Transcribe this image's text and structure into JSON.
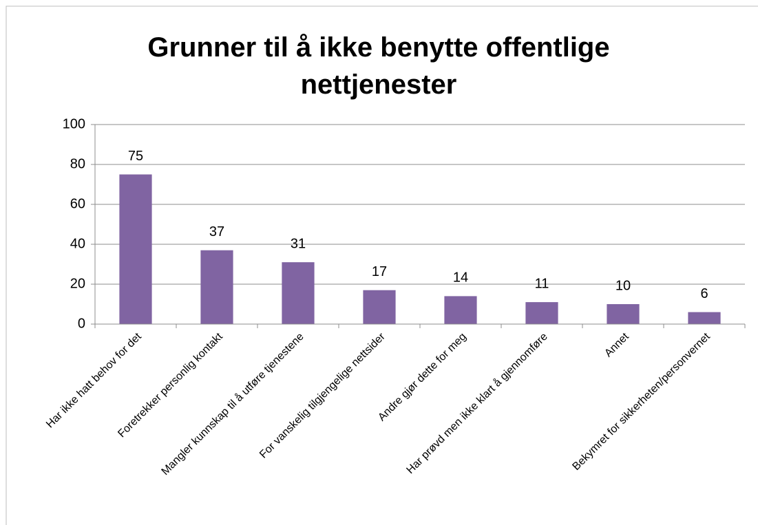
{
  "chart_data": {
    "type": "bar",
    "title": "Grunner til å ikke benytte offentlige nettjenester",
    "categories": [
      "Har ikke hatt behov for det",
      "Foretrekker personlig kontakt",
      "Mangler kunnskap til å utføre tjenestene",
      "For vanskelig tilgjengelige nettsider",
      "Andre gjør dette for meg",
      "Har prøvd men ikke klart å gjennomføre",
      "Annet",
      "Bekymret for sikkerheten/personvernet"
    ],
    "values": [
      75,
      37,
      31,
      17,
      14,
      11,
      10,
      6
    ],
    "color": "#8064a2",
    "ylim": [
      0,
      100
    ],
    "yticks": [
      0,
      20,
      40,
      60,
      80,
      100
    ],
    "grid": true
  }
}
